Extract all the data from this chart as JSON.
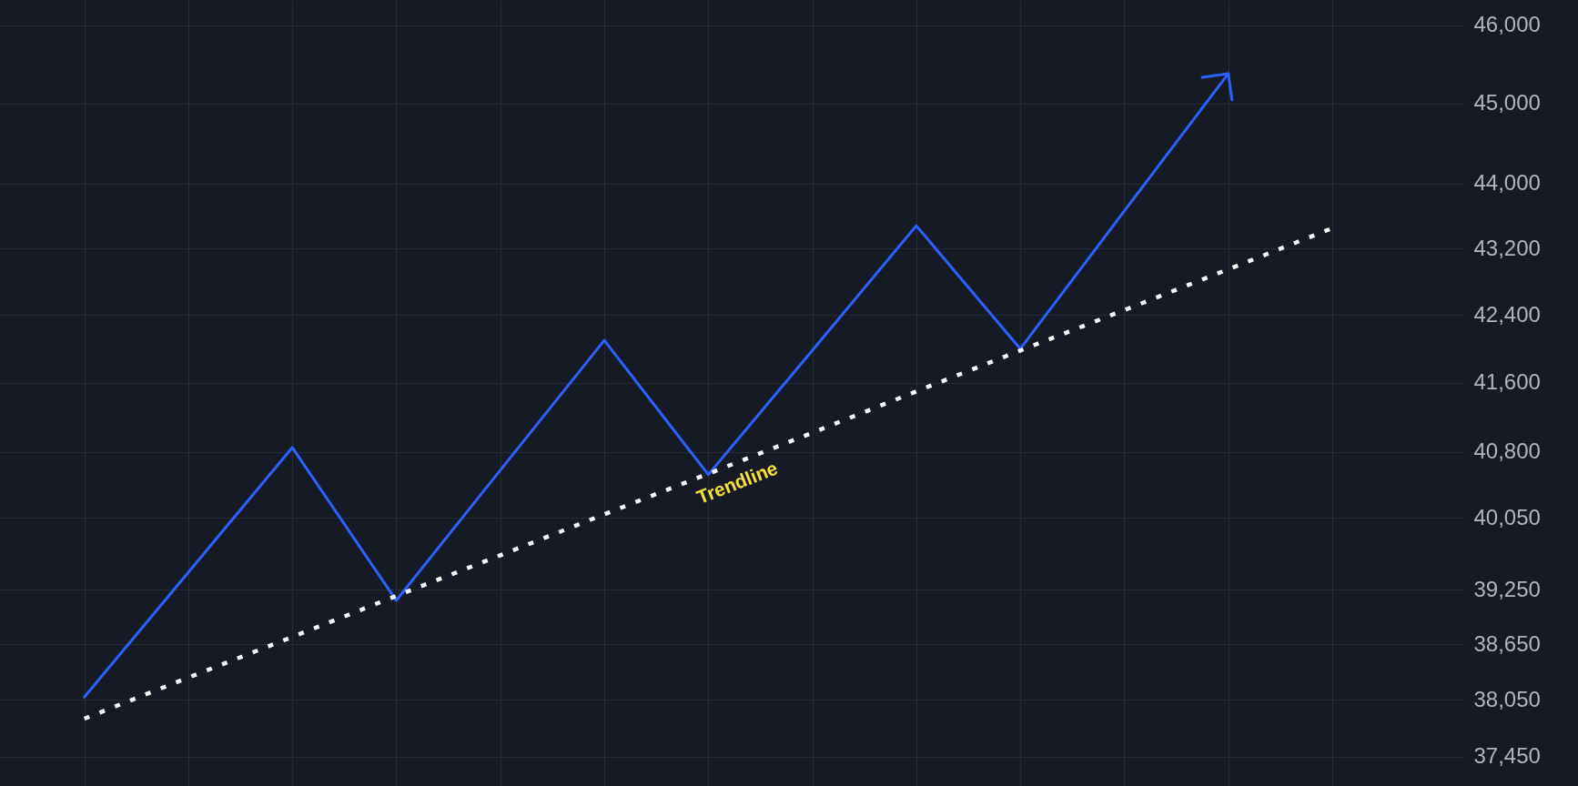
{
  "chart_data": {
    "type": "line",
    "categories": [
      null,
      null,
      null,
      null,
      null,
      null,
      null,
      null,
      null,
      null,
      null,
      null,
      null
    ],
    "series": [
      {
        "color": "#2962ff",
        "line_style": "solid",
        "values": [
          38080,
          39440,
          40850,
          39130,
          40590,
          42100,
          40540,
          41980,
          43480,
          42000,
          43660,
          45380,
          null
        ]
      },
      {
        "type": "line",
        "color": "#ffffff",
        "line_style": "dotted",
        "values": [
          37850,
          38290,
          38730,
          39180,
          39630,
          40090,
          40550,
          41020,
          41500,
          41980,
          42460,
          42950,
          43450
        ]
      }
    ],
    "annotations": [
      "Trendline"
    ],
    "ylim": [
      37140,
      46330
    ],
    "yticks": [
      {
        "value": 37450,
        "label": "37,450"
      },
      {
        "value": 38050,
        "label": "38,050"
      },
      {
        "value": 38650,
        "label": "38,650"
      },
      {
        "value": 39250,
        "label": "39,250"
      },
      {
        "value": 40050,
        "label": "40,050"
      },
      {
        "value": 40800,
        "label": "40,800"
      },
      {
        "value": 41600,
        "label": "41,600"
      },
      {
        "value": 42400,
        "label": "42,400"
      },
      {
        "value": 43200,
        "label": "43,200"
      },
      {
        "value": 44000,
        "label": "44,000"
      },
      {
        "value": 45000,
        "label": "45,000"
      },
      {
        "value": 46000,
        "label": "46,000"
      }
    ],
    "log": "y",
    "grid": true,
    "tick_labels": "y",
    "marker": "none"
  }
}
